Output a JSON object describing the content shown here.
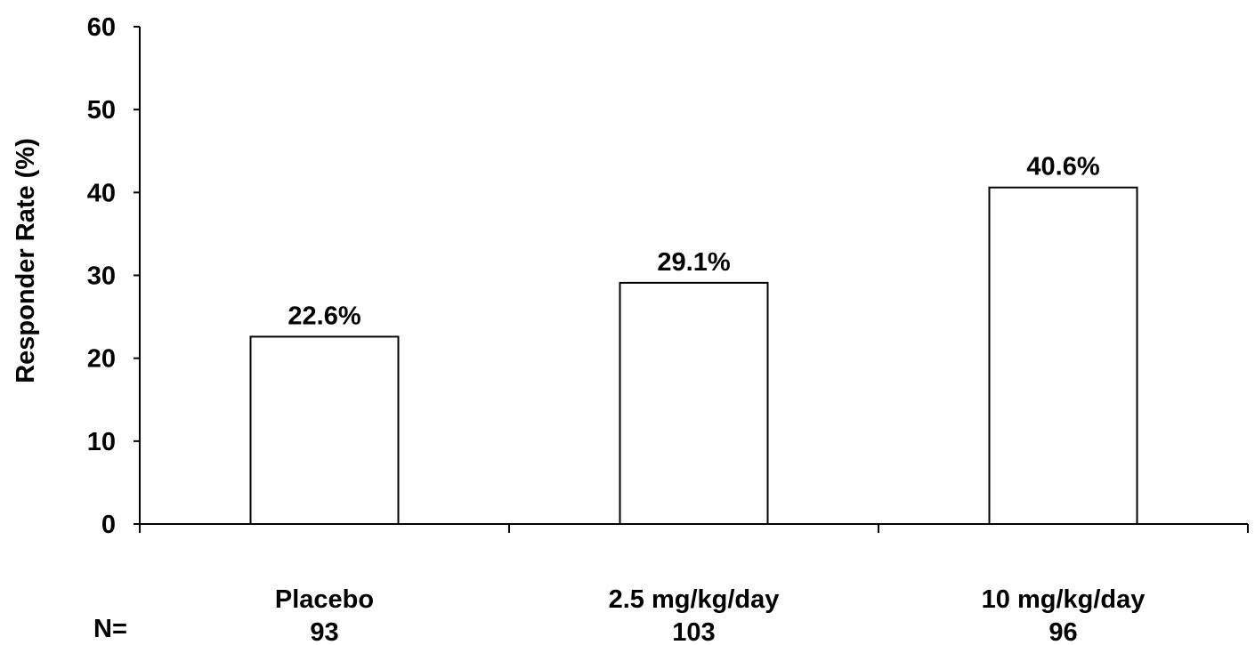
{
  "chart_data": {
    "type": "bar",
    "categories": [
      "Placebo",
      "2.5 mg/kg/day",
      "10 mg/kg/day"
    ],
    "values": [
      22.6,
      29.1,
      40.6
    ],
    "data_labels": [
      "22.6%",
      "29.1%",
      "40.6%"
    ],
    "n_label": "N=",
    "n_values": [
      "93",
      "103",
      "96"
    ],
    "ylabel": "Responder Rate (%)",
    "xlabel": "",
    "title": "",
    "ylim": [
      0,
      60
    ],
    "yticks": [
      0,
      10,
      20,
      30,
      40,
      50,
      60
    ],
    "grid": false,
    "bar_fill": "#ffffff",
    "bar_stroke": "#000000"
  }
}
